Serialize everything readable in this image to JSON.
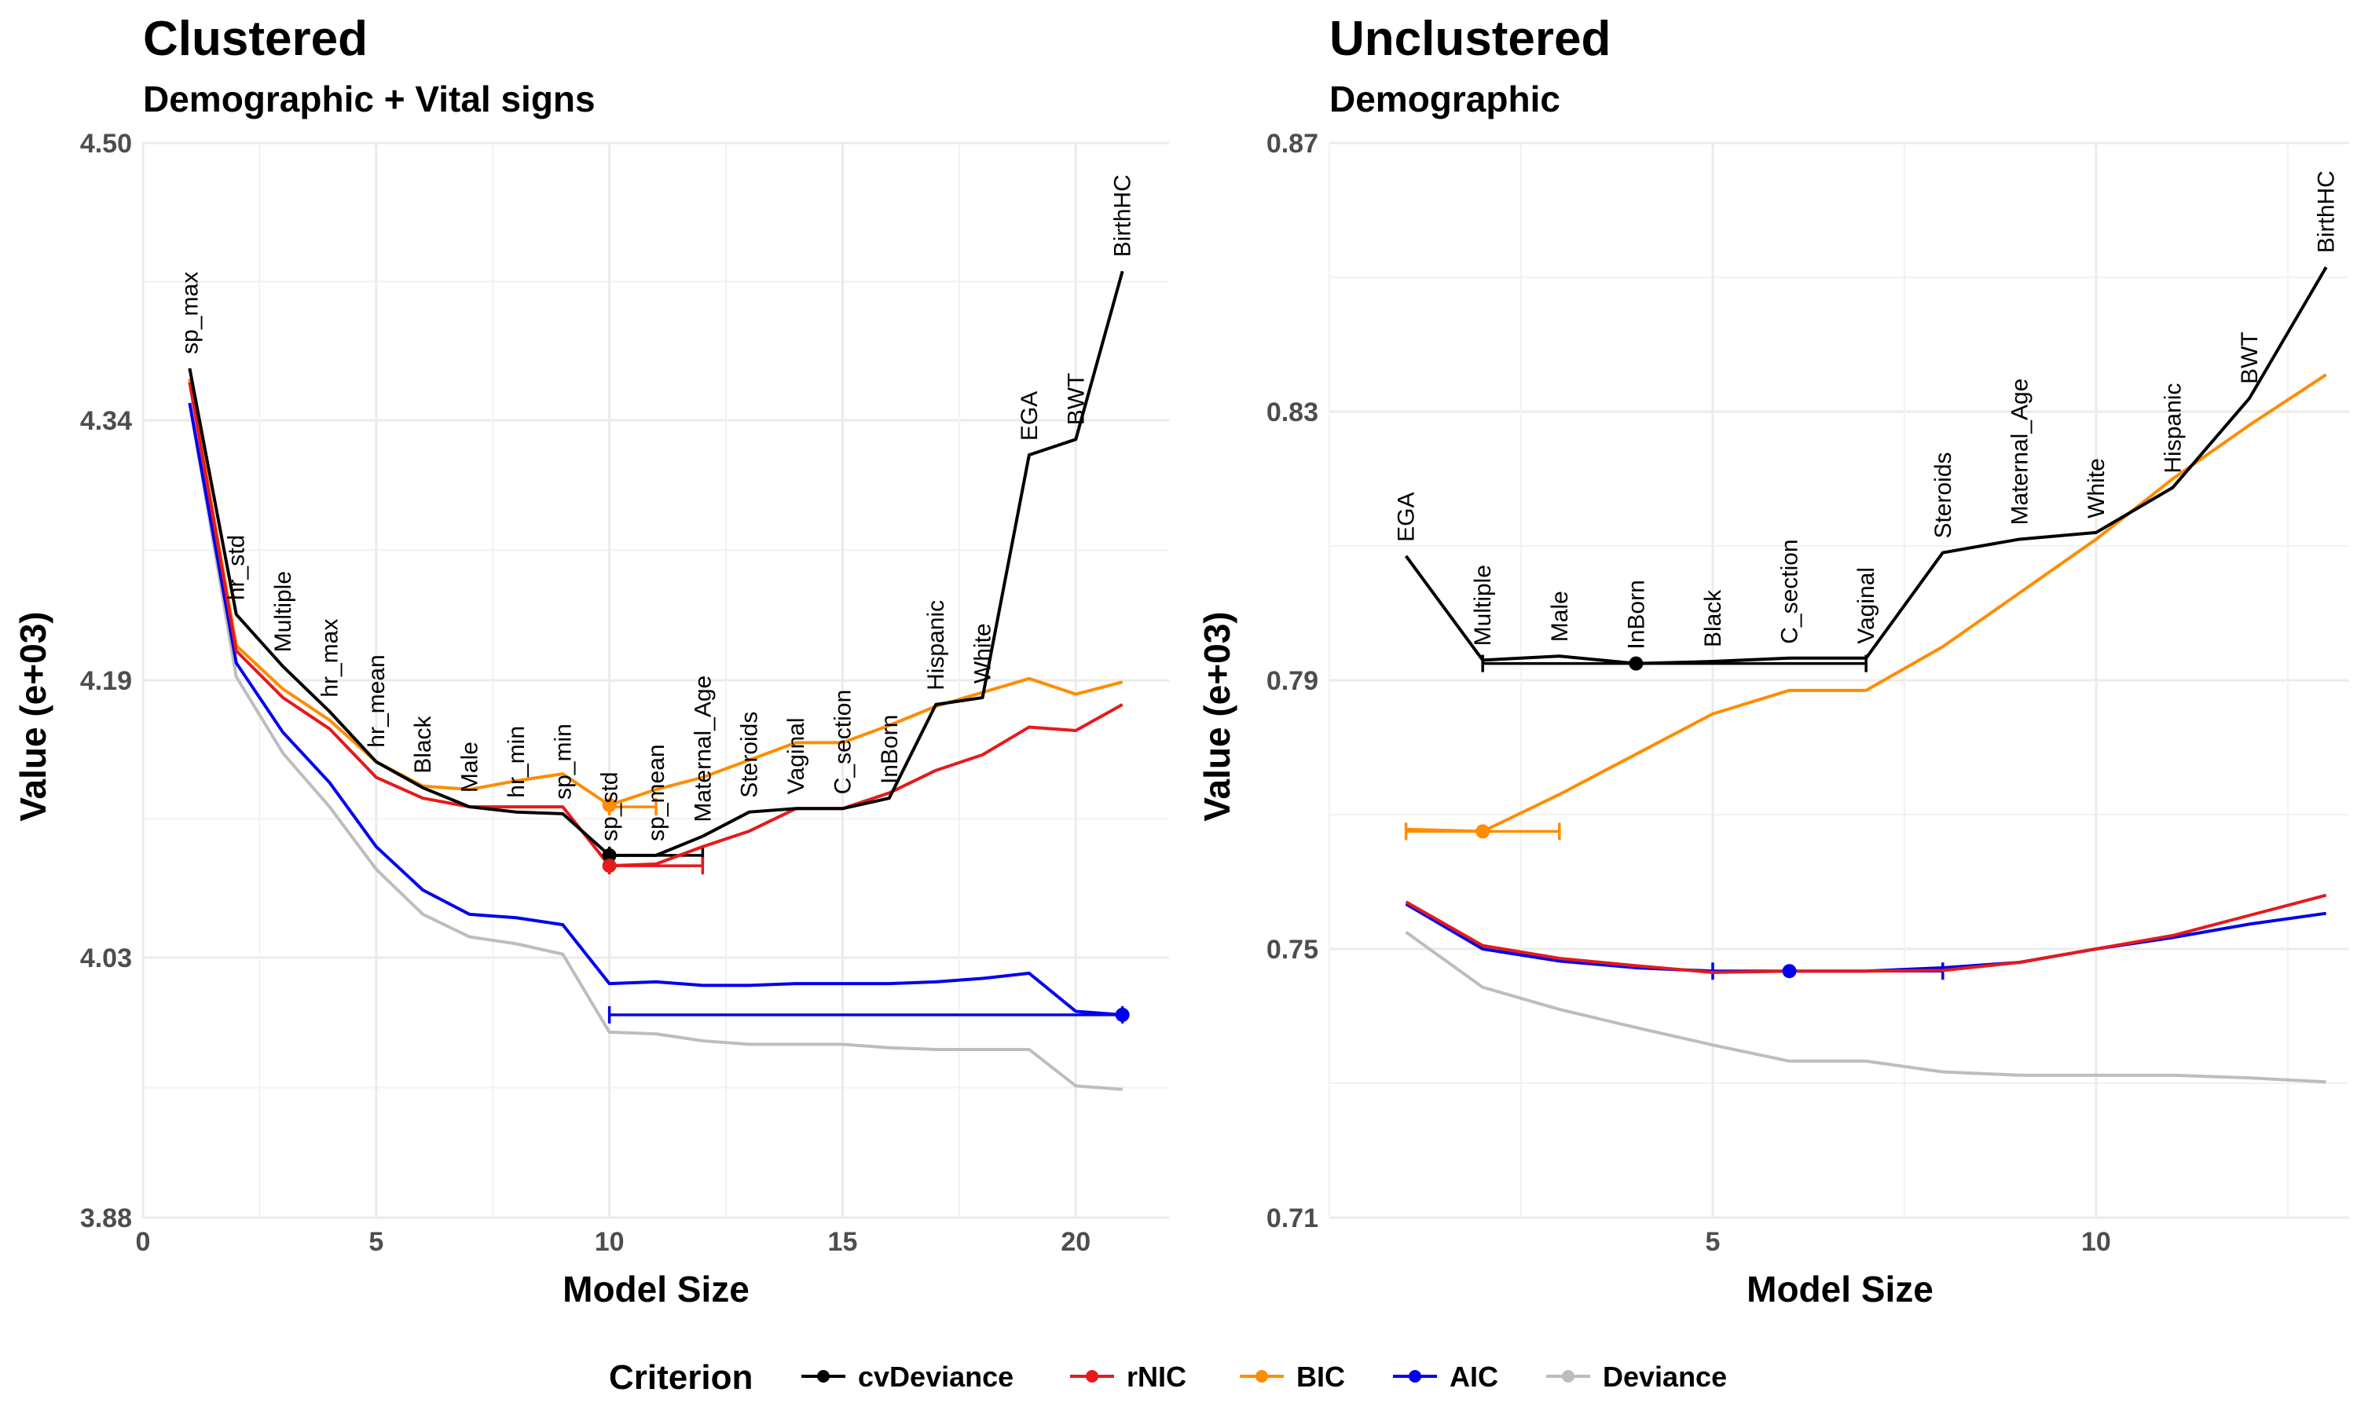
{
  "legend": {
    "title": "Criterion",
    "entries": [
      {
        "name": "cvDeviance",
        "color": "#000000"
      },
      {
        "name": "rNIC",
        "color": "#e41a1c"
      },
      {
        "name": "BIC",
        "color": "#ff8c00"
      },
      {
        "name": "AIC",
        "color": "#0000ee"
      },
      {
        "name": "Deviance",
        "color": "#bdbdbd"
      }
    ]
  },
  "chart_data": [
    {
      "type": "line",
      "title": "Clustered",
      "subtitle": "Demographic + Vital signs",
      "xlabel": "Model Size",
      "ylabel": "Value (e+03)",
      "xlim": [
        0,
        22
      ],
      "ylim": [
        3.88,
        4.5
      ],
      "xticks": [
        0,
        5,
        10,
        15,
        20
      ],
      "yticks": [
        "3.88",
        "4.03",
        "4.19",
        "4.34",
        "4.50"
      ],
      "x": [
        1,
        2,
        3,
        4,
        5,
        6,
        7,
        8,
        9,
        10,
        11,
        12,
        13,
        14,
        15,
        16,
        17,
        18,
        19,
        20,
        21
      ],
      "variable_labels": [
        "sp_max",
        "hr_std",
        "Multiple",
        "hr_max",
        "hr_mean",
        "Black",
        "Male",
        "hr_min",
        "sp_min",
        "sp_std",
        "sp_mean",
        "Maternal_Age",
        "Steroids",
        "Vaginal",
        "C_section",
        "InBorn",
        "Hispanic",
        "White",
        "EGA",
        "BWT",
        "BirthHC"
      ],
      "series": [
        {
          "name": "cvDeviance",
          "color": "#000000",
          "values": [
            4.37,
            4.228,
            4.198,
            4.172,
            4.143,
            4.128,
            4.117,
            4.114,
            4.113,
            4.089,
            4.089,
            4.1,
            4.114,
            4.116,
            4.116,
            4.122,
            4.176,
            4.18,
            4.32,
            4.329,
            4.426
          ]
        },
        {
          "name": "rNIC",
          "color": "#e41a1c",
          "values": [
            4.362,
            4.207,
            4.18,
            4.162,
            4.134,
            4.122,
            4.117,
            4.117,
            4.117,
            4.083,
            4.084,
            4.094,
            4.103,
            4.116,
            4.116,
            4.125,
            4.138,
            4.147,
            4.163,
            4.161,
            4.176
          ]
        },
        {
          "name": "BIC",
          "color": "#ff8c00",
          "values": [
            4.364,
            4.21,
            4.185,
            4.167,
            4.143,
            4.129,
            4.127,
            4.132,
            4.136,
            4.118,
            4.127,
            4.134,
            4.144,
            4.154,
            4.154,
            4.164,
            4.175,
            4.183,
            4.191,
            4.182,
            4.189
          ]
        },
        {
          "name": "AIC",
          "color": "#0000ee",
          "values": [
            4.35,
            4.2,
            4.16,
            4.131,
            4.094,
            4.069,
            4.055,
            4.053,
            4.049,
            4.015,
            4.016,
            4.014,
            4.014,
            4.015,
            4.015,
            4.015,
            4.016,
            4.018,
            4.021,
            3.999,
            3.997
          ]
        },
        {
          "name": "Deviance",
          "color": "#bdbdbd",
          "values": [
            4.35,
            4.192,
            4.148,
            4.117,
            4.081,
            4.055,
            4.042,
            4.038,
            4.032,
            3.987,
            3.986,
            3.982,
            3.98,
            3.98,
            3.98,
            3.978,
            3.977,
            3.977,
            3.977,
            3.956,
            3.954
          ]
        }
      ],
      "optimum_points": [
        {
          "series": "cvDeviance",
          "x": 10,
          "y": 4.089
        },
        {
          "series": "rNIC",
          "x": 10,
          "y": 4.083
        },
        {
          "series": "BIC",
          "x": 10,
          "y": 4.118
        },
        {
          "series": "AIC",
          "x": 21,
          "y": 3.997
        }
      ],
      "optimum_ranges": [
        {
          "series": "cvDeviance",
          "x_from": 10,
          "x_to": 12,
          "y": 4.089
        },
        {
          "series": "rNIC",
          "x_from": 10,
          "x_to": 12,
          "y": 4.083
        },
        {
          "series": "BIC",
          "x_from": 10,
          "x_to": 11,
          "y": 4.117
        },
        {
          "series": "AIC",
          "x_from": 10,
          "x_to": 21,
          "y": 3.997
        }
      ]
    },
    {
      "type": "line",
      "title": "Unclustered",
      "subtitle": "Demographic",
      "xlabel": "Model Size",
      "ylabel": "Value (e+03)",
      "xlim": [
        0.0,
        13.3
      ],
      "ylim": [
        0.71,
        0.87
      ],
      "xticks": [
        5,
        10
      ],
      "yticks": [
        "0.71",
        "0.75",
        "0.79",
        "0.83",
        "0.87"
      ],
      "x": [
        1,
        2,
        3,
        4,
        5,
        6,
        7,
        8,
        9,
        10,
        11,
        12,
        13
      ],
      "variable_labels": [
        "EGA",
        "Multiple",
        "Male",
        "InBorn",
        "Black",
        "C_section",
        "Vaginal",
        "Steroids",
        "Maternal_Age",
        "White",
        "Hispanic",
        "BWT",
        "BirthHC"
      ],
      "series": [
        {
          "name": "cvDeviance",
          "color": "#000000",
          "values": [
            0.8085,
            0.793,
            0.7936,
            0.7925,
            0.7928,
            0.7933,
            0.7933,
            0.809,
            0.811,
            0.812,
            0.8187,
            0.832,
            0.8515
          ]
        },
        {
          "name": "rNIC",
          "color": "#e41a1c",
          "values": [
            0.757,
            0.7505,
            0.7486,
            0.7475,
            0.7465,
            0.7467,
            0.7467,
            0.7468,
            0.748,
            0.75,
            0.752,
            0.755,
            0.758
          ]
        },
        {
          "name": "BIC",
          "color": "#ff8c00",
          "values": null,
          "values_list": [
            0.7678,
            0.7675,
            0.773,
            0.779,
            0.785,
            0.7885,
            0.7885,
            0.795,
            0.803,
            0.811,
            0.82,
            0.828,
            0.8355
          ]
        },
        {
          "name": "AIC",
          "color": "#0000ee",
          "values": [
            0.7567,
            0.75,
            0.7482,
            0.7472,
            0.7467,
            0.7467,
            0.7467,
            0.7472,
            0.748,
            0.75,
            0.7517,
            0.7537,
            0.7553
          ]
        },
        {
          "name": "Deviance",
          "color": "#bdbdbd",
          "values": [
            0.7525,
            0.7443,
            0.741,
            0.7383,
            0.7357,
            0.7333,
            0.7333,
            0.7317,
            0.7312,
            0.7312,
            0.7312,
            0.7308,
            0.7302
          ]
        }
      ],
      "optimum_points": [
        {
          "series": "cvDeviance",
          "x": 4,
          "y": 0.7925
        },
        {
          "series": "BIC",
          "x": 2,
          "y": 0.7675
        },
        {
          "series": "AIC",
          "x": 6,
          "y": 0.7467
        }
      ],
      "optimum_ranges": [
        {
          "series": "cvDeviance",
          "x_from": 2,
          "x_to": 7,
          "y": 0.7925
        },
        {
          "series": "BIC",
          "x_from": 1,
          "x_to": 3,
          "y": 0.7675
        },
        {
          "series": "AIC",
          "x_from": 5,
          "x_to": 8,
          "y": 0.7467
        }
      ]
    }
  ]
}
